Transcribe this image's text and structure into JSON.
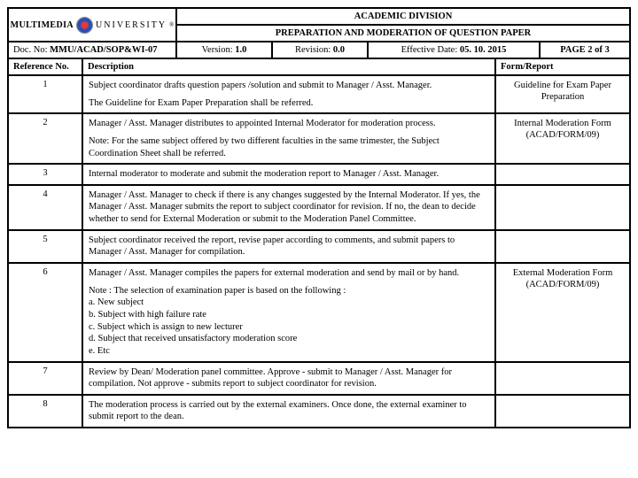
{
  "header": {
    "division": "ACADEMIC DIVISION",
    "title": "PREPARATION AND MODERATION OF QUESTION PAPER",
    "logo_left": "MULTIMEDIA",
    "logo_right": "UNIVERSITY",
    "docNoLabel": "Doc. No: ",
    "docNo": "MMU/ACAD/SOP&WI-07",
    "versionLabel": "Version: ",
    "version": "1.0",
    "revisionLabel": "Revision: ",
    "revision": "0.0",
    "effLabel": "Effective Date: ",
    "effDate": "05. 10. 2015",
    "page": "PAGE 2 of 3"
  },
  "tableHead": {
    "refNo": "Reference No.",
    "desc": "Description",
    "form": "Form/Report"
  },
  "rows": [
    {
      "ref": "1",
      "desc": [
        "Subject coordinator drafts question papers /solution and submit to Manager / Asst. Manager.",
        "The Guideline for Exam Paper Preparation shall be referred."
      ],
      "form": "Guideline for Exam Paper Preparation"
    },
    {
      "ref": "2",
      "desc": [
        "Manager / Asst. Manager distributes to appointed Internal Moderator for moderation process.",
        "Note: For the same subject offered by two different faculties in the same trimester, the Subject Coordination Sheet shall be referred."
      ],
      "form": "Internal Moderation Form (ACAD/FORM/09)"
    },
    {
      "ref": "3",
      "desc": [
        "Internal moderator to moderate and submit the moderation report to Manager / Asst. Manager."
      ],
      "form": ""
    },
    {
      "ref": "4",
      "desc": [
        "Manager / Asst. Manager to check if there is any changes suggested by the Internal Moderator. If yes, the Manager / Asst. Manager submits the report to subject coordinator for revision. If no, the dean to decide whether to send for External Moderation or submit to the Moderation Panel Committee."
      ],
      "form": ""
    },
    {
      "ref": "5",
      "desc": [
        "Subject coordinator received the report, revise paper according to comments, and submit papers to Manager / Asst. Manager for compilation."
      ],
      "form": ""
    },
    {
      "ref": "6",
      "desc": [
        "Manager / Asst. Manager compiles the papers for external moderation and send by mail or by hand.",
        "Note : The selection of examination paper is based on the following :\na. New subject\nb. Subject with high failure rate\nc. Subject which is assign to new lecturer\nd. Subject that received unsatisfactory moderation score\ne. Etc"
      ],
      "form": "External Moderation Form (ACAD/FORM/09)"
    },
    {
      "ref": "7",
      "desc": [
        "Review by Dean/ Moderation panel committee. Approve - submit to Manager / Asst. Manager for compilation. Not approve - submits report to subject coordinator for revision."
      ],
      "form": ""
    },
    {
      "ref": "8",
      "desc": [
        "The moderation process is carried out by the external examiners. Once done, the external examiner to submit report to the dean."
      ],
      "form": ""
    }
  ]
}
